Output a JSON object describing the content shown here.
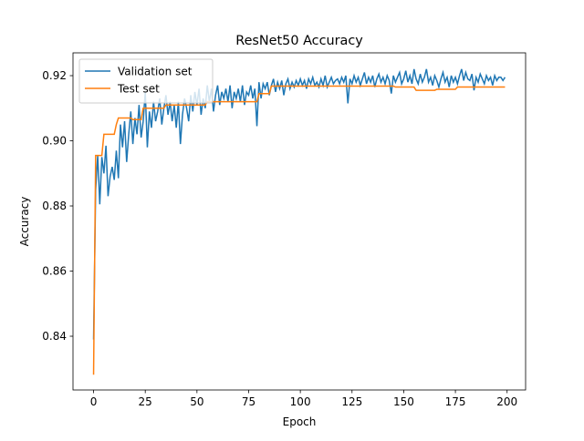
{
  "chart_data": {
    "type": "line",
    "title": "ResNet50 Accuracy",
    "x_label": "Epoch",
    "y_label": "Accuracy",
    "x": [
      0,
      1,
      2,
      3,
      4,
      5,
      6,
      7,
      8,
      9,
      10,
      11,
      12,
      13,
      14,
      15,
      16,
      17,
      18,
      19,
      20,
      21,
      22,
      23,
      24,
      25,
      26,
      27,
      28,
      29,
      30,
      31,
      32,
      33,
      34,
      35,
      36,
      37,
      38,
      39,
      40,
      41,
      42,
      43,
      44,
      45,
      46,
      47,
      48,
      49,
      50,
      51,
      52,
      53,
      54,
      55,
      56,
      57,
      58,
      59,
      60,
      61,
      62,
      63,
      64,
      65,
      66,
      67,
      68,
      69,
      70,
      71,
      72,
      73,
      74,
      75,
      76,
      77,
      78,
      79,
      80,
      81,
      82,
      83,
      84,
      85,
      86,
      87,
      88,
      89,
      90,
      91,
      92,
      93,
      94,
      95,
      96,
      97,
      98,
      99,
      100,
      101,
      102,
      103,
      104,
      105,
      106,
      107,
      108,
      109,
      110,
      111,
      112,
      113,
      114,
      115,
      116,
      117,
      118,
      119,
      120,
      121,
      122,
      123,
      124,
      125,
      126,
      127,
      128,
      129,
      130,
      131,
      132,
      133,
      134,
      135,
      136,
      137,
      138,
      139,
      140,
      141,
      142,
      143,
      144,
      145,
      146,
      147,
      148,
      149,
      150,
      151,
      152,
      153,
      154,
      155,
      156,
      157,
      158,
      159,
      160,
      161,
      162,
      163,
      164,
      165,
      166,
      167,
      168,
      169,
      170,
      171,
      172,
      173,
      174,
      175,
      176,
      177,
      178,
      179,
      180,
      181,
      182,
      183,
      184,
      185,
      186,
      187,
      188,
      189,
      190,
      191,
      192,
      193,
      194,
      195,
      196,
      197,
      198,
      199
    ],
    "series": [
      {
        "name": "Validation set",
        "color": "#1f77b4",
        "values": [
          0.839,
          0.885,
          0.8955,
          0.8805,
          0.895,
          0.89,
          0.8985,
          0.883,
          0.889,
          0.892,
          0.888,
          0.897,
          0.8885,
          0.905,
          0.898,
          0.906,
          0.8935,
          0.902,
          0.909,
          0.899,
          0.907,
          0.902,
          0.911,
          0.901,
          0.906,
          0.915,
          0.898,
          0.909,
          0.904,
          0.912,
          0.906,
          0.909,
          0.913,
          0.905,
          0.91,
          0.914,
          0.908,
          0.912,
          0.906,
          0.911,
          0.904,
          0.912,
          0.899,
          0.908,
          0.913,
          0.91,
          0.906,
          0.914,
          0.909,
          0.915,
          0.911,
          0.916,
          0.908,
          0.913,
          0.91,
          0.917,
          0.912,
          0.916,
          0.909,
          0.914,
          0.917,
          0.911,
          0.915,
          0.913,
          0.916,
          0.912,
          0.917,
          0.91,
          0.915,
          0.913,
          0.916,
          0.912,
          0.917,
          0.911,
          0.915,
          0.914,
          0.917,
          0.913,
          0.916,
          0.9045,
          0.918,
          0.913,
          0.9175,
          0.916,
          0.918,
          0.914,
          0.917,
          0.919,
          0.915,
          0.918,
          0.916,
          0.9185,
          0.914,
          0.9175,
          0.919,
          0.916,
          0.918,
          0.9165,
          0.9185,
          0.917,
          0.919,
          0.917,
          0.9185,
          0.916,
          0.919,
          0.9175,
          0.9195,
          0.917,
          0.918,
          0.9165,
          0.919,
          0.917,
          0.92,
          0.9165,
          0.918,
          0.9195,
          0.9175,
          0.9185,
          0.919,
          0.9175,
          0.9195,
          0.918,
          0.92,
          0.9115,
          0.919,
          0.9175,
          0.92,
          0.918,
          0.9195,
          0.917,
          0.919,
          0.921,
          0.9175,
          0.9195,
          0.918,
          0.92,
          0.9165,
          0.919,
          0.9205,
          0.918,
          0.9195,
          0.9175,
          0.92,
          0.9185,
          0.9145,
          0.92,
          0.918,
          0.9195,
          0.921,
          0.9175,
          0.919,
          0.9215,
          0.918,
          0.92,
          0.9175,
          0.922,
          0.919,
          0.9175,
          0.9205,
          0.918,
          0.9195,
          0.922,
          0.918,
          0.9195,
          0.917,
          0.92,
          0.9185,
          0.9165,
          0.919,
          0.921,
          0.918,
          0.9195,
          0.9165,
          0.92,
          0.918,
          0.9195,
          0.9175,
          0.92,
          0.922,
          0.9185,
          0.921,
          0.919,
          0.9185,
          0.9205,
          0.9155,
          0.9195,
          0.918,
          0.9205,
          0.919,
          0.9175,
          0.92,
          0.9185,
          0.9195,
          0.917,
          0.92,
          0.9185,
          0.9195,
          0.9195,
          0.9185,
          0.9195
        ]
      },
      {
        "name": "Test set",
        "color": "#ff7f0e",
        "values": [
          0.8282,
          0.8955,
          0.8955,
          0.8955,
          0.8955,
          0.902,
          0.902,
          0.902,
          0.902,
          0.902,
          0.902,
          0.905,
          0.907,
          0.907,
          0.907,
          0.907,
          0.907,
          0.907,
          0.907,
          0.9065,
          0.9065,
          0.9065,
          0.9065,
          0.9065,
          0.91,
          0.91,
          0.91,
          0.91,
          0.91,
          0.91,
          0.91,
          0.91,
          0.91,
          0.91,
          0.91,
          0.911,
          0.911,
          0.911,
          0.911,
          0.911,
          0.911,
          0.911,
          0.911,
          0.911,
          0.911,
          0.911,
          0.911,
          0.911,
          0.911,
          0.911,
          0.911,
          0.911,
          0.911,
          0.911,
          0.911,
          0.912,
          0.912,
          0.912,
          0.912,
          0.912,
          0.912,
          0.912,
          0.912,
          0.912,
          0.912,
          0.912,
          0.912,
          0.912,
          0.912,
          0.912,
          0.912,
          0.912,
          0.912,
          0.912,
          0.912,
          0.912,
          0.912,
          0.912,
          0.912,
          0.912,
          0.9145,
          0.9145,
          0.9145,
          0.9145,
          0.9145,
          0.9145,
          0.9168,
          0.9168,
          0.9168,
          0.9168,
          0.9168,
          0.9168,
          0.9168,
          0.9168,
          0.9168,
          0.9168,
          0.9168,
          0.9168,
          0.9168,
          0.9168,
          0.9168,
          0.9168,
          0.9168,
          0.9168,
          0.9168,
          0.9168,
          0.9168,
          0.9168,
          0.9168,
          0.9168,
          0.9168,
          0.9168,
          0.9168,
          0.9168,
          0.9168,
          0.9168,
          0.9168,
          0.9168,
          0.9168,
          0.9168,
          0.9168,
          0.9168,
          0.9168,
          0.9168,
          0.9168,
          0.9168,
          0.9168,
          0.9168,
          0.9168,
          0.9168,
          0.9168,
          0.9168,
          0.9168,
          0.9168,
          0.9168,
          0.9168,
          0.9168,
          0.9168,
          0.9168,
          0.9168,
          0.9168,
          0.9168,
          0.9168,
          0.9168,
          0.9168,
          0.9168,
          0.9165,
          0.9165,
          0.9165,
          0.9165,
          0.9165,
          0.9165,
          0.9165,
          0.9165,
          0.9165,
          0.9165,
          0.9155,
          0.9155,
          0.9155,
          0.9155,
          0.9155,
          0.9155,
          0.9155,
          0.9155,
          0.9155,
          0.9155,
          0.9158,
          0.9158,
          0.9158,
          0.9158,
          0.9158,
          0.9158,
          0.9158,
          0.9158,
          0.9158,
          0.9158,
          0.9165,
          0.9165,
          0.9165,
          0.9165,
          0.9165,
          0.9165,
          0.9165,
          0.9165,
          0.9165,
          0.9165,
          0.9165,
          0.9165,
          0.9165,
          0.9165,
          0.9165,
          0.9165,
          0.9165,
          0.9165,
          0.9165,
          0.9165,
          0.9165,
          0.9165,
          0.9165,
          0.9165
        ]
      }
    ],
    "xlim": [
      -9.95,
      208.95
    ],
    "ylim": [
      0.8235,
      0.927
    ],
    "xticks": [
      0,
      25,
      50,
      75,
      100,
      125,
      150,
      175,
      200
    ],
    "yticks": [
      0.84,
      0.86,
      0.88,
      {
        "value": 0.9,
        "label": "0.90"
      },
      0.92
    ],
    "grid": false,
    "legend": "upper left"
  }
}
